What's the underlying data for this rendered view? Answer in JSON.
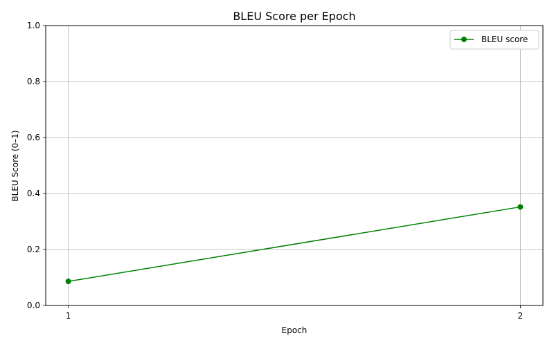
{
  "chart_data": {
    "type": "line",
    "title": "BLEU Score per Epoch",
    "xlabel": "Epoch",
    "ylabel": "BLEU Score (0–1)",
    "x": [
      1,
      2
    ],
    "x_ticks": [
      "1",
      "2"
    ],
    "ylim": [
      0,
      1
    ],
    "y_ticks": [
      "0.0",
      "0.2",
      "0.4",
      "0.6",
      "0.8",
      "1.0"
    ],
    "grid": true,
    "legend_position": "top-right",
    "series": [
      {
        "name": "BLEU score",
        "values": [
          0.086,
          0.352
        ],
        "color": "#008000",
        "marker": "circle"
      }
    ]
  }
}
